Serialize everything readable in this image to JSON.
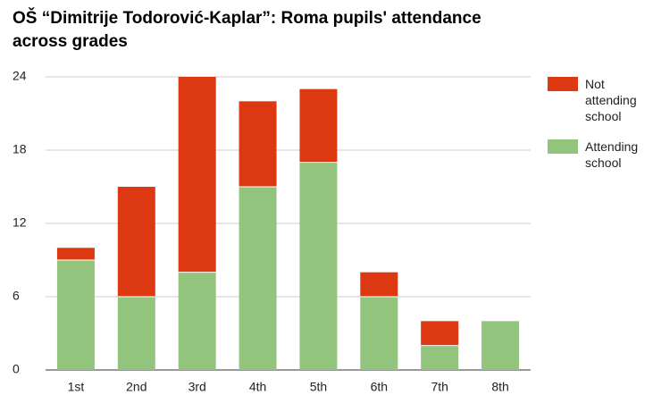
{
  "chart_data": {
    "type": "stacked_bar",
    "title": "OŠ “Dimitrije Todorović-Kaplar”: Roma pupils' attendance across grades",
    "categories": [
      "1st",
      "2nd",
      "3rd",
      "4th",
      "5th",
      "6th",
      "7th",
      "8th"
    ],
    "series": [
      {
        "name": "Not attending school",
        "color": "#dc3912",
        "values": [
          1,
          9,
          16,
          7,
          6,
          2,
          2,
          0
        ]
      },
      {
        "name": "Attending school",
        "color": "#93c47d",
        "values": [
          9,
          6,
          8,
          15,
          17,
          6,
          2,
          4
        ]
      }
    ],
    "ylim": [
      0,
      24
    ],
    "yticks": [
      0,
      6,
      12,
      18,
      24
    ],
    "grid": true,
    "legend": "right"
  }
}
